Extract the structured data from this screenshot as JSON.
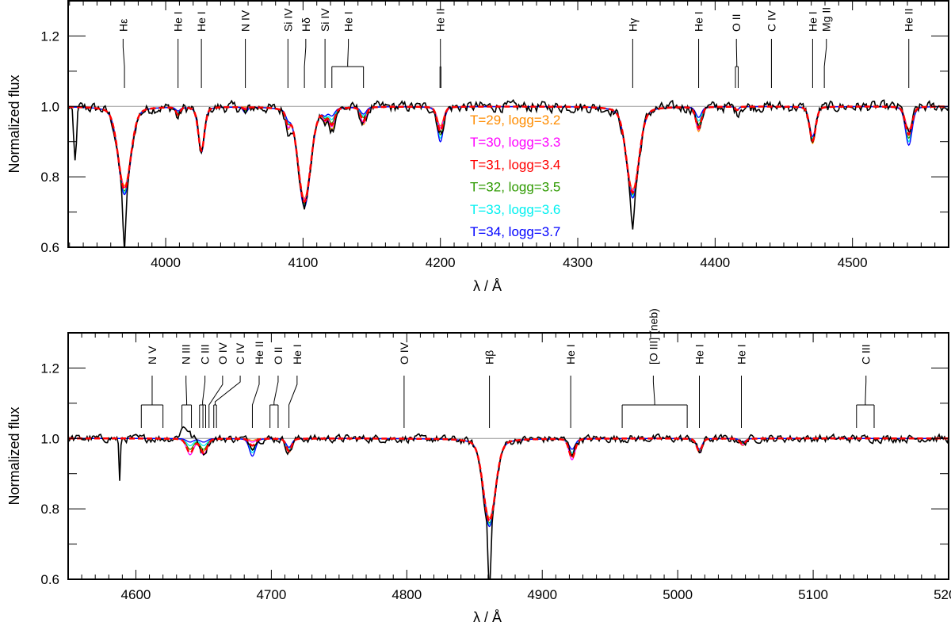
{
  "chart_data": [
    {
      "type": "line",
      "title": "",
      "xlabel": "λ / Å",
      "ylabel": "Normalized flux",
      "xlim": [
        3929,
        4570
      ],
      "ylim": [
        0.6,
        1.3
      ],
      "xticks": [
        4000,
        4100,
        4200,
        4300,
        4400,
        4500
      ],
      "xtick_labels": [
        "4000",
        "4100",
        "4200",
        "4300",
        "4400",
        "4500"
      ],
      "yticks": [
        0.6,
        0.8,
        1.0,
        1.2
      ],
      "ytick_labels": [
        "0.6",
        "0.8",
        "1.0",
        "1.2"
      ],
      "continuum": 1.0,
      "legend": {
        "placement": "center",
        "entries": [
          {
            "label": "T=29, logg=3.2",
            "color": "#ff8c00"
          },
          {
            "label": "T=30, logg=3.3",
            "color": "#ff00ff"
          },
          {
            "label": "T=31, logg=3.4",
            "color": "#ff0000"
          },
          {
            "label": "T=32, logg=3.5",
            "color": "#2e9a00"
          },
          {
            "label": "T=33, logg=3.6",
            "color": "#00f0f0"
          },
          {
            "label": "T=34, logg=3.7",
            "color": "#0000ff"
          }
        ]
      },
      "absorption_lines": [
        {
          "center": 3970,
          "sigma": 4.5,
          "depths": [
            0.225,
            0.23,
            0.235,
            0.24,
            0.245,
            0.25
          ],
          "observed_depth": 0.25
        },
        {
          "center": 4009,
          "sigma": 1.5,
          "depths": [
            0.025,
            0.022,
            0.02,
            0.017,
            0.014,
            0.01
          ],
          "observed_depth": 0.03
        },
        {
          "center": 4026,
          "sigma": 2.2,
          "depths": [
            0.12,
            0.122,
            0.124,
            0.126,
            0.128,
            0.13
          ],
          "observed_depth": 0.13
        },
        {
          "center": 4058,
          "sigma": 1.5,
          "depths": [
            0.0,
            0.003,
            0.006,
            0.01,
            0.013,
            0.016
          ],
          "observed_depth": 0.02
        },
        {
          "center": 4089,
          "sigma": 1.5,
          "depths": [
            0.045,
            0.04,
            0.035,
            0.03,
            0.025,
            0.02
          ],
          "observed_depth": 0.05
        },
        {
          "center": 4101,
          "sigma": 4.5,
          "depths": [
            0.26,
            0.265,
            0.27,
            0.275,
            0.28,
            0.285
          ],
          "observed_depth": 0.28
        },
        {
          "center": 4116,
          "sigma": 1.5,
          "depths": [
            0.03,
            0.027,
            0.024,
            0.02,
            0.017,
            0.014
          ],
          "observed_depth": 0.04
        },
        {
          "center": 4121,
          "sigma": 2.0,
          "depths": [
            0.06,
            0.05,
            0.045,
            0.04,
            0.03,
            0.02
          ],
          "observed_depth": 0.06
        },
        {
          "center": 4144,
          "sigma": 2.0,
          "depths": [
            0.05,
            0.045,
            0.04,
            0.03,
            0.025,
            0.02
          ],
          "observed_depth": 0.05
        },
        {
          "center": 4200,
          "sigma": 2.2,
          "depths": [
            0.055,
            0.06,
            0.07,
            0.08,
            0.09,
            0.1
          ],
          "observed_depth": 0.08
        },
        {
          "center": 4340,
          "sigma": 4.5,
          "depths": [
            0.235,
            0.24,
            0.245,
            0.25,
            0.255,
            0.26
          ],
          "observed_depth": 0.26
        },
        {
          "center": 4388,
          "sigma": 2.0,
          "depths": [
            0.07,
            0.065,
            0.06,
            0.05,
            0.04,
            0.03
          ],
          "observed_depth": 0.06
        },
        {
          "center": 4416,
          "sigma": 1.2,
          "depths": [
            0.01,
            0.01,
            0.01,
            0.01,
            0.01,
            0.01
          ],
          "observed_depth": 0.02
        },
        {
          "center": 4471,
          "sigma": 2.2,
          "depths": [
            0.105,
            0.1,
            0.097,
            0.094,
            0.09,
            0.085
          ],
          "observed_depth": 0.1
        },
        {
          "center": 4541,
          "sigma": 2.4,
          "depths": [
            0.065,
            0.07,
            0.08,
            0.09,
            0.1,
            0.11
          ],
          "observed_depth": 0.08
        }
      ],
      "observed_features": [
        {
          "center": 3934,
          "sigma": 1.0,
          "depth": 0.16
        },
        {
          "center": 3970,
          "sigma": 0.9,
          "depth": 0.17
        },
        {
          "center": 4340,
          "sigma": 0.9,
          "depth": 0.09
        }
      ],
      "observed_noise": 0.014,
      "markers": [
        {
          "label": "Hε",
          "label_at": 3969,
          "targets": [
            3970
          ]
        },
        {
          "label": "He I",
          "label_at": 4009,
          "targets": [
            4009
          ]
        },
        {
          "label": "He I",
          "label_at": 4026,
          "targets": [
            4026
          ]
        },
        {
          "label": "N IV",
          "label_at": 4058,
          "targets": [
            4058
          ]
        },
        {
          "label": "Si IV",
          "label_at": 4089,
          "targets": [
            4089
          ]
        },
        {
          "label": "Hδ",
          "label_at": 4102,
          "targets": [
            4101
          ]
        },
        {
          "label": "Si IV",
          "label_at": 4116,
          "targets": [
            4116
          ]
        },
        {
          "label": "He I",
          "label_at": 4133,
          "targets": [
            4121,
            4144
          ]
        },
        {
          "label": "He II",
          "label_at": 4200,
          "targets": [
            4199.7,
            4200.4
          ]
        },
        {
          "label": "Hγ",
          "label_at": 4340,
          "targets": [
            4340
          ]
        },
        {
          "label": "He I",
          "label_at": 4388,
          "targets": [
            4388
          ]
        },
        {
          "label": "O II",
          "label_at": 4415.5,
          "targets": [
            4414.8,
            4416.8
          ]
        },
        {
          "label": "C IV",
          "label_at": 4441,
          "targets": [
            4441
          ]
        },
        {
          "label": "He I",
          "label_at": 4471,
          "targets": [
            4471
          ]
        },
        {
          "label": "Mg II",
          "label_at": 4481,
          "targets": [
            4479.5
          ]
        },
        {
          "label": "He II",
          "label_at": 4541,
          "targets": [
            4541
          ]
        }
      ]
    },
    {
      "type": "line",
      "title": "",
      "xlabel": "λ / Å",
      "ylabel": "Normalized flux",
      "xlim": [
        4550,
        5200
      ],
      "ylim": [
        0.6,
        1.3
      ],
      "xticks": [
        4600,
        4700,
        4800,
        4900,
        5000,
        5100,
        5200
      ],
      "xtick_labels": [
        "4600",
        "4700",
        "4800",
        "4900",
        "5000",
        "5100",
        "5200"
      ],
      "yticks": [
        0.6,
        0.8,
        1.0,
        1.2
      ],
      "ytick_labels": [
        "0.6",
        "0.8",
        "1.0",
        "1.2"
      ],
      "continuum": 1.0,
      "absorption_lines": [
        {
          "center": 4640,
          "sigma": 2.5,
          "depths": [
            0.03,
            0.045,
            0.04,
            0.03,
            0.02,
            0.01
          ],
          "observed_depth": 0.0
        },
        {
          "center": 4650,
          "sigma": 2.5,
          "depths": [
            0.035,
            0.045,
            0.04,
            0.03,
            0.02,
            0.01
          ],
          "observed_depth": 0.04
        },
        {
          "center": 4686,
          "sigma": 2.2,
          "depths": [
            0.005,
            0.01,
            0.02,
            0.03,
            0.04,
            0.05
          ],
          "observed_depth": 0.02
        },
        {
          "center": 4713,
          "sigma": 2.0,
          "depths": [
            0.04,
            0.038,
            0.035,
            0.032,
            0.03,
            0.025
          ],
          "observed_depth": 0.04
        },
        {
          "center": 4861,
          "sigma": 4.5,
          "depths": [
            0.225,
            0.23,
            0.235,
            0.24,
            0.245,
            0.25
          ],
          "observed_depth": 0.25
        },
        {
          "center": 4922,
          "sigma": 2.2,
          "depths": [
            0.05,
            0.06,
            0.055,
            0.045,
            0.04,
            0.03
          ],
          "observed_depth": 0.04
        },
        {
          "center": 5016,
          "sigma": 2.0,
          "depths": [
            0.04,
            0.038,
            0.036,
            0.034,
            0.032,
            0.03
          ],
          "observed_depth": 0.04
        },
        {
          "center": 5048,
          "sigma": 2.0,
          "depths": [
            0.02,
            0.018,
            0.016,
            0.014,
            0.012,
            0.01
          ],
          "observed_depth": 0.015
        }
      ],
      "observed_features": [
        {
          "center": 4588,
          "sigma": 0.5,
          "depth": 0.13
        },
        {
          "center": 4636,
          "sigma": 3.0,
          "depth": -0.035
        },
        {
          "center": 4861,
          "sigma": 0.9,
          "depth": 0.2
        }
      ],
      "observed_noise": 0.01,
      "markers": [
        {
          "label": "N V",
          "label_at": 4612,
          "targets": [
            4604,
            4620
          ]
        },
        {
          "label": "N III",
          "label_at": 4637,
          "targets": [
            4634,
            4641
          ]
        },
        {
          "label": "C III",
          "label_at": 4651,
          "targets": [
            4647,
            4649.5,
            4651.5
          ]
        },
        {
          "label": "O IV",
          "label_at": 4664,
          "targets": [
            4654
          ]
        },
        {
          "label": "C IV",
          "label_at": 4677,
          "targets": [
            4657.5,
            4659.5
          ]
        },
        {
          "label": "He II",
          "label_at": 4691,
          "targets": [
            4686
          ]
        },
        {
          "label": "O II",
          "label_at": 4705,
          "targets": [
            4699,
            4705
          ]
        },
        {
          "label": "He I",
          "label_at": 4719,
          "targets": [
            4713
          ]
        },
        {
          "label": "O IV",
          "label_at": 4798,
          "targets": [
            4798
          ]
        },
        {
          "label": "Hβ",
          "label_at": 4861,
          "targets": [
            4861
          ]
        },
        {
          "label": "He I",
          "label_at": 4921,
          "targets": [
            4921
          ]
        },
        {
          "label": "[O III] (neb)",
          "label_at": 4982,
          "targets": [
            4959,
            5007
          ]
        },
        {
          "label": "He I",
          "label_at": 5016,
          "targets": [
            5016
          ]
        },
        {
          "label": "He I",
          "label_at": 5047,
          "targets": [
            5047
          ]
        },
        {
          "label": "C III",
          "label_at": 5139,
          "targets": [
            5132,
            5145
          ]
        }
      ]
    }
  ]
}
